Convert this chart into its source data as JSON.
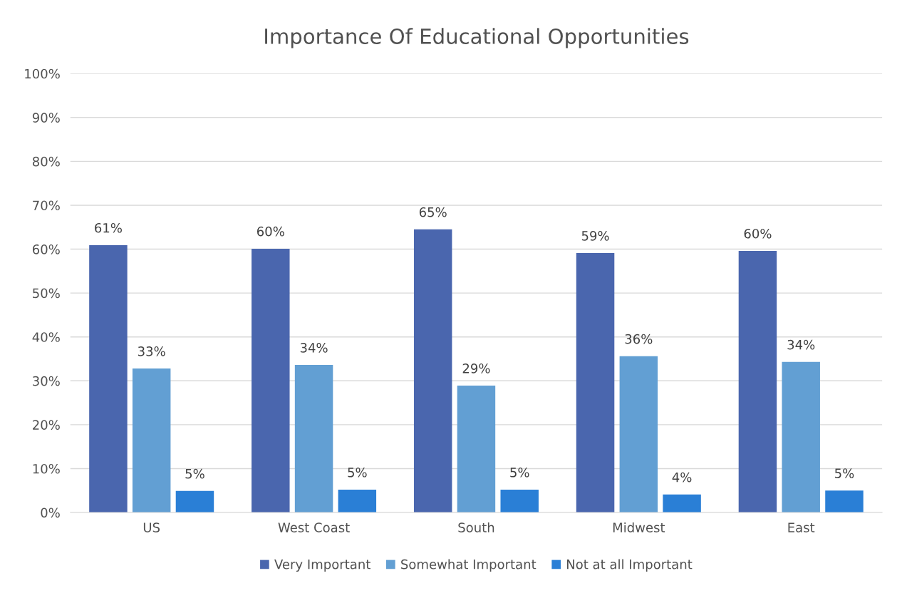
{
  "chart_data": {
    "type": "bar",
    "title": "Importance Of Educational Opportunities",
    "categories": [
      "US",
      "West Coast",
      "South",
      "Midwest",
      "East"
    ],
    "series": [
      {
        "name": "Very Important",
        "color": "#4a66ae",
        "values": [
          60.9,
          60.1,
          64.5,
          59.1,
          59.6
        ],
        "value_labels": [
          "61%",
          "60%",
          "65%",
          "59%",
          "60%"
        ]
      },
      {
        "name": "Somewhat Important",
        "color": "#629fd3",
        "values": [
          32.8,
          33.6,
          28.9,
          35.6,
          34.3
        ],
        "value_labels": [
          "33%",
          "34%",
          "29%",
          "36%",
          "34%"
        ]
      },
      {
        "name": "Not at all Important",
        "color": "#2a7fd6",
        "values": [
          4.9,
          5.2,
          5.2,
          4.1,
          5.0
        ],
        "value_labels": [
          "5%",
          "5%",
          "5%",
          "4%",
          "5%"
        ]
      }
    ],
    "ylim": [
      0,
      100
    ],
    "yticks": [
      {
        "value": 0,
        "label": "0%"
      },
      {
        "value": 10,
        "label": "10%"
      },
      {
        "value": 20,
        "label": "20%"
      },
      {
        "value": 30,
        "label": "30%"
      },
      {
        "value": 40,
        "label": "40%"
      },
      {
        "value": 50,
        "label": "50%"
      },
      {
        "value": 60,
        "label": "60%"
      },
      {
        "value": 70,
        "label": "70%"
      },
      {
        "value": 80,
        "label": "80%"
      },
      {
        "value": 90,
        "label": "90%"
      },
      {
        "value": 100,
        "label": "100%"
      }
    ],
    "grid": "y",
    "legend": "bottom"
  }
}
